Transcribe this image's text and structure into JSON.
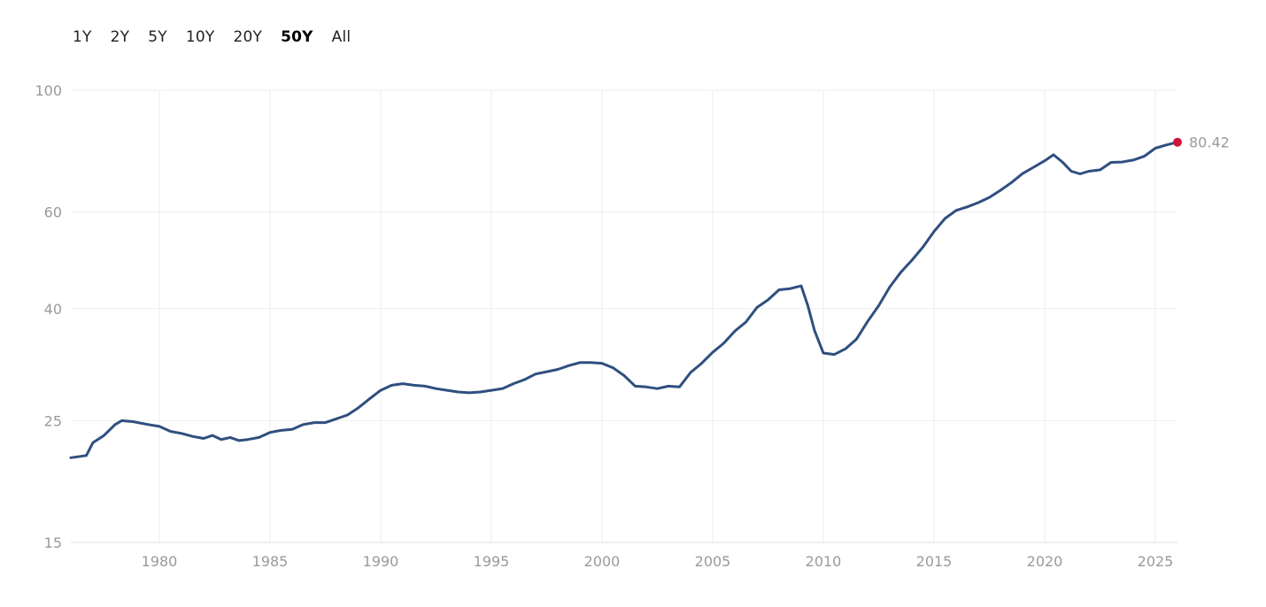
{
  "range_tabs": [
    {
      "label": "1Y",
      "active": false
    },
    {
      "label": "2Y",
      "active": false
    },
    {
      "label": "5Y",
      "active": false
    },
    {
      "label": "10Y",
      "active": false
    },
    {
      "label": "20Y",
      "active": false
    },
    {
      "label": "50Y",
      "active": true
    },
    {
      "label": "All",
      "active": false
    }
  ],
  "colors": {
    "line": "#2f4f7f",
    "last_point": "#d0153a",
    "grid": "#eeeeee",
    "tick_text": "#9a9a9a"
  },
  "chart_data": {
    "type": "line",
    "title": "",
    "xlabel": "",
    "ylabel": "",
    "y_scale": "log",
    "ylim": [
      15,
      100
    ],
    "xlim": [
      1976,
      2026
    ],
    "x_ticks": [
      1980,
      1985,
      1990,
      1995,
      2000,
      2005,
      2010,
      2015,
      2020,
      2025
    ],
    "y_ticks": [
      15,
      25,
      40,
      60,
      100
    ],
    "grid": true,
    "last_value_label": "80.42",
    "series": [
      {
        "points": [
          [
            1976.0,
            21.4
          ],
          [
            1976.7,
            21.6
          ],
          [
            1977.0,
            22.8
          ],
          [
            1977.5,
            23.5
          ],
          [
            1978.0,
            24.6
          ],
          [
            1978.3,
            25.0
          ],
          [
            1978.8,
            24.9
          ],
          [
            1979.5,
            24.6
          ],
          [
            1980.0,
            24.4
          ],
          [
            1980.5,
            23.9
          ],
          [
            1981.0,
            23.7
          ],
          [
            1981.5,
            23.4
          ],
          [
            1982.0,
            23.2
          ],
          [
            1982.4,
            23.5
          ],
          [
            1982.8,
            23.1
          ],
          [
            1983.2,
            23.3
          ],
          [
            1983.6,
            23.0
          ],
          [
            1984.0,
            23.1
          ],
          [
            1984.5,
            23.3
          ],
          [
            1985.0,
            23.8
          ],
          [
            1985.5,
            24.0
          ],
          [
            1986.0,
            24.1
          ],
          [
            1986.5,
            24.6
          ],
          [
            1987.0,
            24.8
          ],
          [
            1987.5,
            24.8
          ],
          [
            1988.0,
            25.2
          ],
          [
            1988.5,
            25.6
          ],
          [
            1989.0,
            26.4
          ],
          [
            1989.5,
            27.4
          ],
          [
            1990.0,
            28.4
          ],
          [
            1990.5,
            29.0
          ],
          [
            1991.0,
            29.2
          ],
          [
            1991.5,
            29.0
          ],
          [
            1992.0,
            28.9
          ],
          [
            1992.5,
            28.6
          ],
          [
            1993.0,
            28.4
          ],
          [
            1993.5,
            28.2
          ],
          [
            1994.0,
            28.1
          ],
          [
            1994.5,
            28.2
          ],
          [
            1995.0,
            28.4
          ],
          [
            1995.5,
            28.6
          ],
          [
            1996.0,
            29.2
          ],
          [
            1996.5,
            29.7
          ],
          [
            1997.0,
            30.4
          ],
          [
            1997.5,
            30.7
          ],
          [
            1998.0,
            31.0
          ],
          [
            1998.5,
            31.5
          ],
          [
            1999.0,
            31.9
          ],
          [
            1999.5,
            31.9
          ],
          [
            2000.0,
            31.8
          ],
          [
            2000.5,
            31.2
          ],
          [
            2001.0,
            30.2
          ],
          [
            2001.5,
            28.9
          ],
          [
            2002.0,
            28.8
          ],
          [
            2002.5,
            28.6
          ],
          [
            2003.0,
            28.9
          ],
          [
            2003.5,
            28.8
          ],
          [
            2004.0,
            30.6
          ],
          [
            2004.5,
            31.8
          ],
          [
            2005.0,
            33.3
          ],
          [
            2005.5,
            34.6
          ],
          [
            2006.0,
            36.4
          ],
          [
            2006.5,
            37.8
          ],
          [
            2007.0,
            40.2
          ],
          [
            2007.5,
            41.5
          ],
          [
            2008.0,
            43.3
          ],
          [
            2008.5,
            43.5
          ],
          [
            2009.0,
            44.0
          ],
          [
            2009.3,
            40.5
          ],
          [
            2009.6,
            36.5
          ],
          [
            2010.0,
            33.2
          ],
          [
            2010.5,
            33.0
          ],
          [
            2011.0,
            33.8
          ],
          [
            2011.5,
            35.2
          ],
          [
            2012.0,
            37.9
          ],
          [
            2012.5,
            40.5
          ],
          [
            2013.0,
            43.8
          ],
          [
            2013.5,
            46.6
          ],
          [
            2014.0,
            49.0
          ],
          [
            2014.5,
            51.8
          ],
          [
            2015.0,
            55.3
          ],
          [
            2015.5,
            58.4
          ],
          [
            2016.0,
            60.4
          ],
          [
            2016.5,
            61.3
          ],
          [
            2017.0,
            62.4
          ],
          [
            2017.5,
            63.8
          ],
          [
            2018.0,
            65.7
          ],
          [
            2018.5,
            67.9
          ],
          [
            2019.0,
            70.5
          ],
          [
            2019.5,
            72.4
          ],
          [
            2020.0,
            74.4
          ],
          [
            2020.4,
            76.3
          ],
          [
            2020.8,
            74.0
          ],
          [
            2021.2,
            71.2
          ],
          [
            2021.6,
            70.4
          ],
          [
            2022.0,
            71.2
          ],
          [
            2022.5,
            71.6
          ],
          [
            2023.0,
            73.9
          ],
          [
            2023.5,
            74.0
          ],
          [
            2024.0,
            74.6
          ],
          [
            2024.5,
            75.8
          ],
          [
            2025.0,
            78.4
          ],
          [
            2025.5,
            79.5
          ],
          [
            2026.0,
            80.42
          ]
        ]
      }
    ]
  }
}
